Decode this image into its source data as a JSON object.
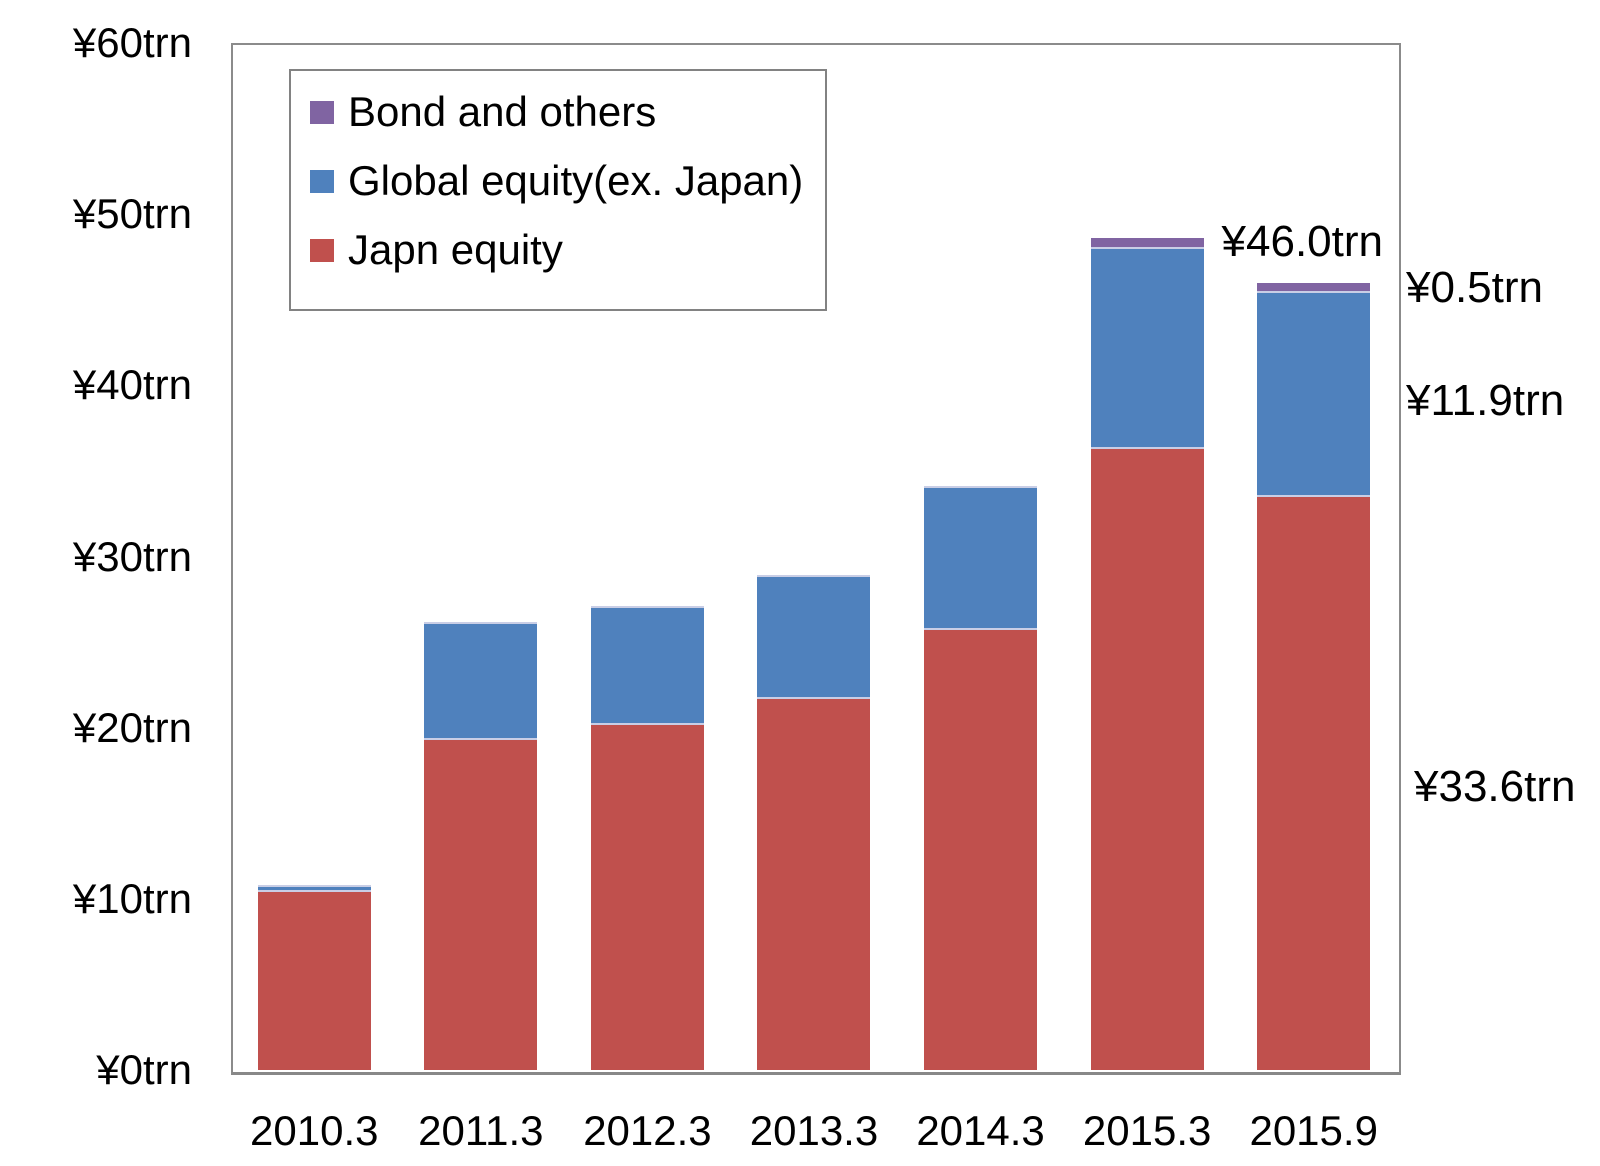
{
  "chart_data": {
    "type": "bar",
    "stacked": true,
    "title": "",
    "categories": [
      "2010.3",
      "2011.3",
      "2012.3",
      "2013.3",
      "2014.3",
      "2015.3",
      "2015.9"
    ],
    "series": [
      {
        "name": "Japn equity",
        "color": "#C0504D",
        "values": [
          10.5,
          19.4,
          20.3,
          21.8,
          25.8,
          36.4,
          33.6
        ]
      },
      {
        "name": "Global equity(ex. Japan)",
        "color": "#4F81BD",
        "values": [
          0.3,
          6.8,
          6.8,
          7.1,
          8.3,
          11.7,
          11.9
        ]
      },
      {
        "name": "Bond and others",
        "color": "#8064A2",
        "values": [
          0,
          0,
          0,
          0,
          0,
          0.5,
          0.5
        ]
      }
    ],
    "totals": [
      10.8,
      26.2,
      27.1,
      28.9,
      34.1,
      48.6,
      46.0
    ],
    "ylim": [
      0,
      60
    ],
    "yticks": [
      "¥0trn",
      "¥10trn",
      "¥20trn",
      "¥30trn",
      "¥40trn",
      "¥50trn",
      "¥60trn"
    ],
    "grid": false,
    "legend_position": "inside-top-left",
    "legend_order": [
      "Bond and others",
      "Global equity(ex. Japan)",
      "Japn equity"
    ],
    "annotations": {
      "total_2015_9": "¥46.0trn",
      "bond_2015_9": "¥0.5trn",
      "global_2015_9": "¥11.9trn",
      "japan_2015_9": "¥33.6trn"
    }
  }
}
